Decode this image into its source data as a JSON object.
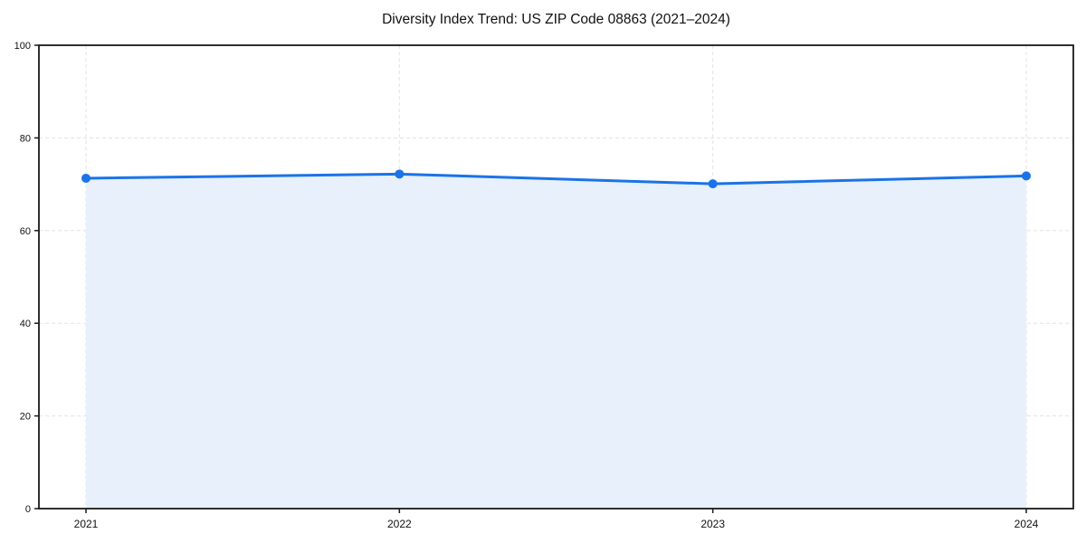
{
  "chart_data": {
    "type": "area",
    "title": "Diversity Index Trend: US ZIP Code 08863 (2021–2024)",
    "xlabel": "",
    "ylabel": "",
    "categories": [
      "2021",
      "2022",
      "2023",
      "2024"
    ],
    "series": [
      {
        "name": "Diversity Index",
        "values": [
          71.3,
          72.2,
          70.1,
          71.8
        ]
      }
    ],
    "ylim": [
      0,
      100
    ],
    "yticks": [
      0,
      20,
      40,
      60,
      80,
      100
    ],
    "grid": true,
    "grid_style": "dashed",
    "legend_position": "none",
    "colors": {
      "line": "#1a73e8",
      "marker": "#1a73e8",
      "fill": "#e8f0fc",
      "grid": "#e3e3e3",
      "spine": "#1a1a1a",
      "text": "#111111",
      "background": "#ffffff"
    }
  }
}
